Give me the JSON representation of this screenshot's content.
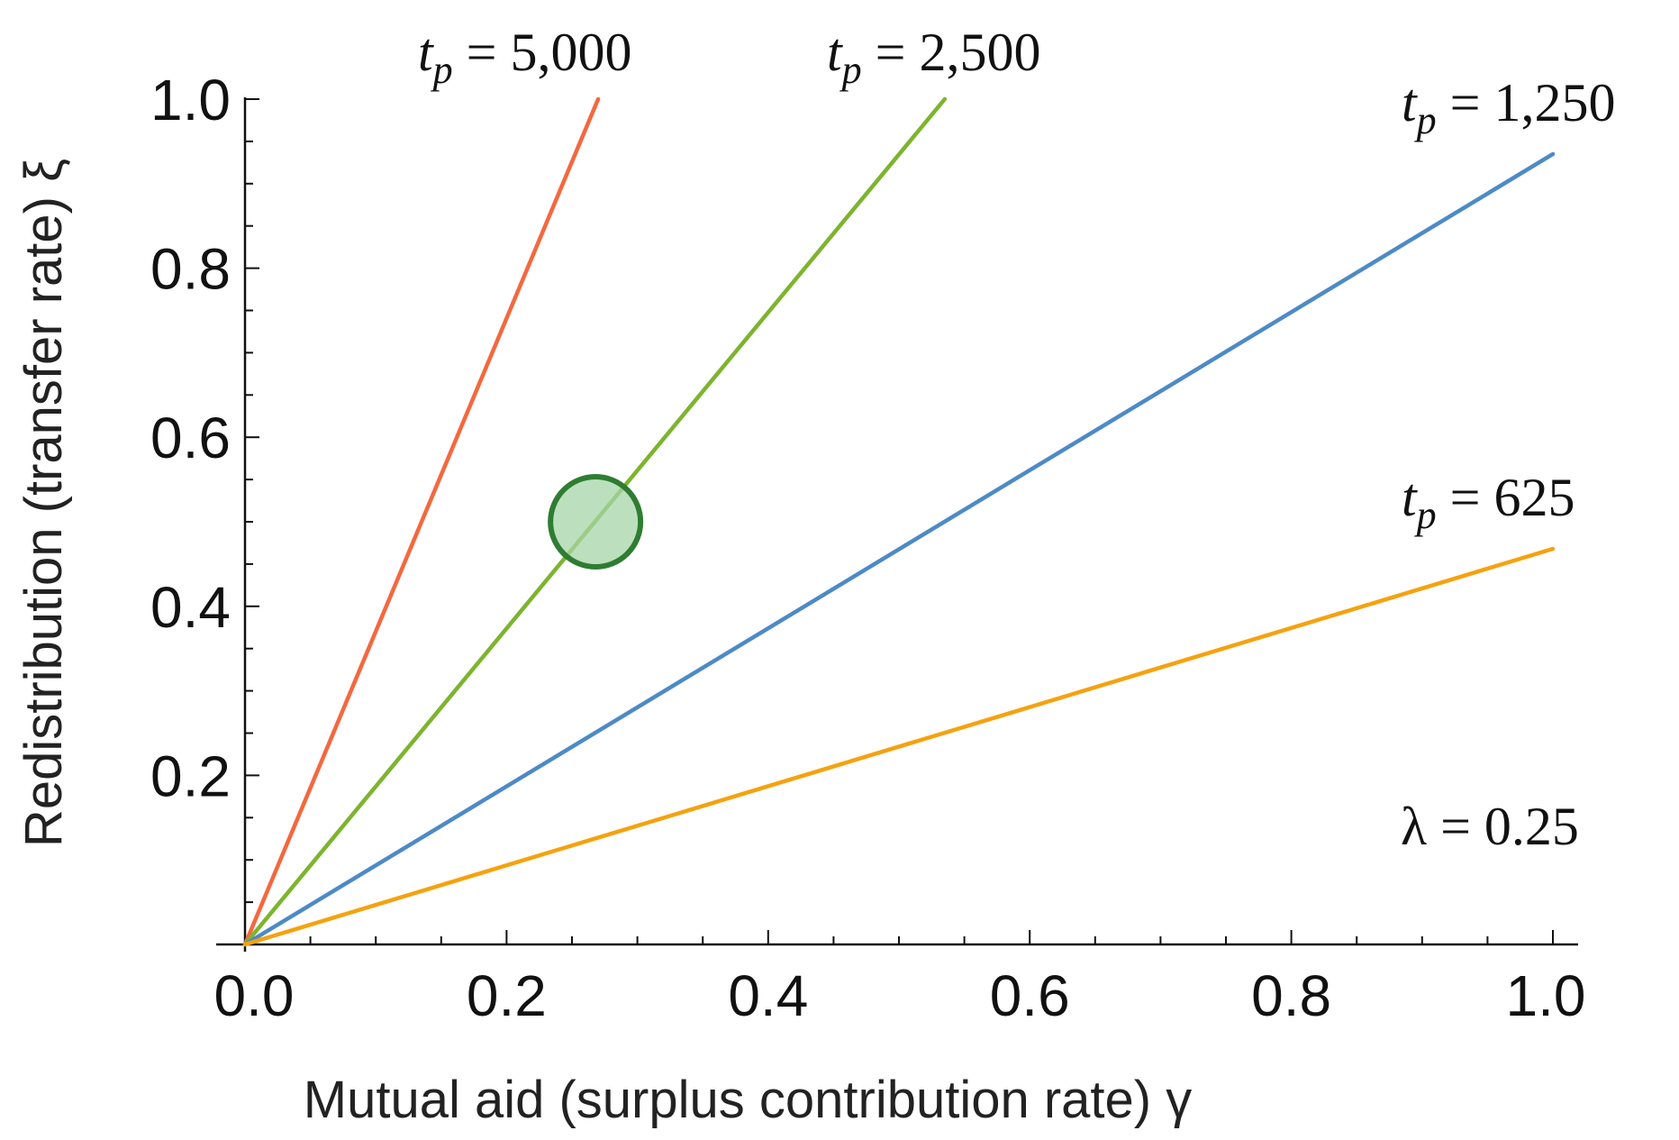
{
  "chart_data": {
    "type": "line",
    "title": "",
    "xlabel": "Mutual aid (surplus contribution rate) γ",
    "ylabel": "Redistribution (transfer rate) ξ",
    "xlim": [
      0,
      1
    ],
    "ylim": [
      0,
      1
    ],
    "x_ticks": [
      "0.0",
      "0.2",
      "0.4",
      "0.6",
      "0.8",
      "1.0"
    ],
    "y_ticks": [
      "0.2",
      "0.4",
      "0.6",
      "0.8",
      "1.0"
    ],
    "series": [
      {
        "name": "t_p = 5,000",
        "symbol": "t",
        "subscript": "p",
        "value_text": " = 5,000",
        "color": "#f4683f",
        "x": [
          0,
          0.27
        ],
        "y": [
          0,
          1.0
        ]
      },
      {
        "name": "t_p = 2,500",
        "symbol": "t",
        "subscript": "p",
        "value_text": " = 2,500",
        "color": "#7db42e",
        "x": [
          0,
          0.535
        ],
        "y": [
          0,
          1.0
        ]
      },
      {
        "name": "t_p = 1,250",
        "symbol": "t",
        "subscript": "p",
        "value_text": " = 1,250",
        "color": "#4d8ac6",
        "x": [
          0,
          1.0
        ],
        "y": [
          0,
          0.935
        ]
      },
      {
        "name": "t_p = 625",
        "symbol": "t",
        "subscript": "p",
        "value_text": " = 625",
        "color": "#f5a20f",
        "x": [
          0,
          1.0
        ],
        "y": [
          0,
          0.468
        ]
      }
    ],
    "highlight_point": {
      "x": 0.268,
      "y": 0.5,
      "color": "#2e7d32",
      "fill": "#a5d6a7"
    },
    "annotation": "λ = 0.25",
    "grid": false,
    "legend": "none"
  }
}
